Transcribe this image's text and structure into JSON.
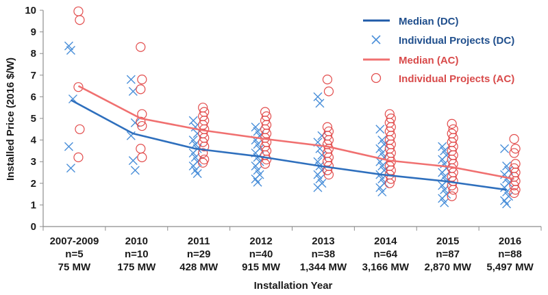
{
  "chart_data": {
    "type": "scatter",
    "ylabel": "Installed Price (2016 $/W)",
    "xlabel": "Installation Year",
    "ylim": [
      0,
      10
    ],
    "yticks": [
      "0",
      "1",
      "2",
      "3",
      "4",
      "5",
      "6",
      "7",
      "8",
      "9",
      "10"
    ],
    "grid": false,
    "legend_position": "top-right",
    "categories": [
      {
        "year": "2007-2009",
        "n": "n=5",
        "mw": "75 MW"
      },
      {
        "year": "2010",
        "n": "n=10",
        "mw": "175 MW"
      },
      {
        "year": "2011",
        "n": "n=29",
        "mw": "428 MW"
      },
      {
        "year": "2012",
        "n": "n=40",
        "mw": "915 MW"
      },
      {
        "year": "2013",
        "n": "n=38",
        "mw": "1,344 MW"
      },
      {
        "year": "2014",
        "n": "n=64",
        "mw": "3,166 MW"
      },
      {
        "year": "2015",
        "n": "n=87",
        "mw": "2,870 MW"
      },
      {
        "year": "2016",
        "n": "n=88",
        "mw": "5,497 MW"
      }
    ],
    "series": [
      {
        "name": "Median (DC)",
        "kind": "line",
        "color": "#2e6fbd",
        "values": [
          5.85,
          4.3,
          3.6,
          3.25,
          2.8,
          2.4,
          2.1,
          1.7
        ]
      },
      {
        "name": "Individual Projects (DC)",
        "kind": "x-marker",
        "color": "#4a8fd9",
        "points": [
          [
            [
              8.35,
              8.15,
              5.9,
              3.7,
              2.7
            ]
          ],
          [
            [
              6.8,
              6.25,
              4.8,
              4.2,
              3.05,
              2.6
            ]
          ],
          [
            [
              4.9,
              4.6,
              4.3,
              4.0,
              3.8,
              3.6,
              3.4,
              3.2,
              3.0,
              2.8,
              2.6,
              2.45
            ]
          ],
          [
            [
              4.6,
              4.4,
              4.2,
              4.0,
              3.8,
              3.6,
              3.4,
              3.2,
              3.0,
              2.8,
              2.6,
              2.4,
              2.2,
              2.05
            ]
          ],
          [
            [
              6.0,
              5.7,
              4.2,
              3.9,
              3.6,
              3.3,
              3.0,
              2.8,
              2.6,
              2.4,
              2.2,
              2.0,
              1.8
            ]
          ],
          [
            [
              4.5,
              4.0,
              3.8,
              3.6,
              3.4,
              3.2,
              3.0,
              2.8,
              2.6,
              2.4,
              2.2,
              2.0,
              1.8,
              1.6
            ]
          ],
          [
            [
              3.7,
              3.5,
              3.3,
              3.1,
              2.9,
              2.7,
              2.5,
              2.3,
              2.1,
              1.9,
              1.7,
              1.5,
              1.3,
              1.1
            ]
          ],
          [
            [
              3.6,
              2.8,
              2.6,
              2.4,
              2.2,
              2.0,
              1.8,
              1.6,
              1.4,
              1.2,
              1.05
            ]
          ]
        ]
      },
      {
        "name": "Median (AC)",
        "kind": "line",
        "color": "#f07070",
        "values": [
          6.5,
          5.0,
          4.45,
          4.05,
          3.7,
          3.05,
          2.75,
          2.2
        ]
      },
      {
        "name": "Individual Projects (AC)",
        "kind": "circle-marker",
        "color": "#e24b4b",
        "points": [
          [
            [
              9.95,
              9.55,
              6.45,
              4.5,
              3.2
            ]
          ],
          [
            [
              8.3,
              6.8,
              6.35,
              5.2,
              4.85,
              4.65,
              3.6,
              3.2
            ]
          ],
          [
            [
              5.5,
              5.3,
              5.1,
              4.9,
              4.7,
              4.5,
              4.3,
              4.1,
              3.9,
              3.7,
              3.4,
              3.1,
              2.95
            ]
          ],
          [
            [
              5.3,
              5.1,
              4.9,
              4.7,
              4.5,
              4.3,
              4.1,
              3.9,
              3.7,
              3.5,
              3.3,
              3.1,
              2.9
            ]
          ],
          [
            [
              6.8,
              6.25,
              4.6,
              4.4,
              4.2,
              4.0,
              3.8,
              3.6,
              3.4,
              3.2,
              3.0,
              2.8,
              2.6,
              2.4
            ]
          ],
          [
            [
              5.2,
              5.0,
              4.8,
              4.6,
              4.4,
              4.2,
              4.0,
              3.8,
              3.6,
              3.4,
              3.2,
              3.0,
              2.8,
              2.6,
              2.4,
              2.2,
              2.0
            ]
          ],
          [
            [
              4.75,
              4.5,
              4.3,
              4.1,
              3.9,
              3.7,
              3.5,
              3.3,
              3.1,
              2.9,
              2.7,
              2.5,
              2.3,
              2.1,
              1.9,
              1.7,
              1.4
            ]
          ],
          [
            [
              4.05,
              3.6,
              3.4,
              2.9,
              2.7,
              2.5,
              2.3,
              2.1,
              1.9,
              1.7,
              1.55
            ]
          ]
        ]
      }
    ]
  }
}
